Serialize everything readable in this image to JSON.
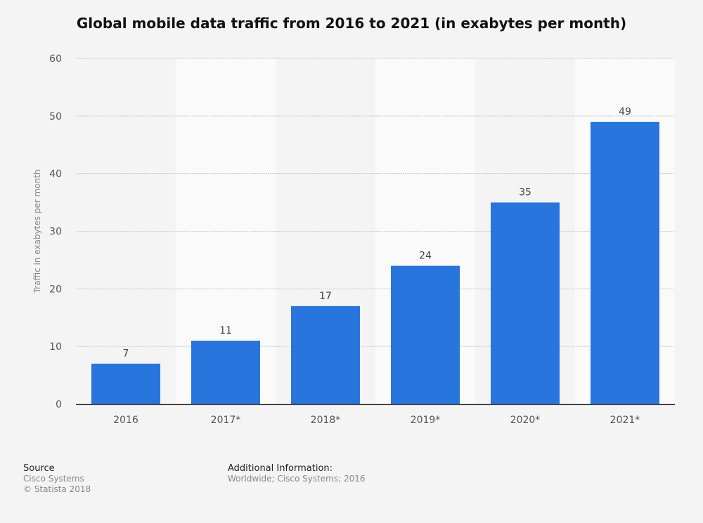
{
  "chart_data": {
    "type": "bar",
    "title": "Global mobile data traffic from 2016 to 2021 (in exabytes per month)",
    "xlabel": "",
    "ylabel": "Traffic in exabytes per month",
    "categories": [
      "2016",
      "2017*",
      "2018*",
      "2019*",
      "2020*",
      "2021*"
    ],
    "values": [
      7,
      11,
      17,
      24,
      35,
      49
    ],
    "ylim": [
      0,
      60
    ],
    "yticks": [
      0,
      10,
      20,
      30,
      40,
      50,
      60
    ],
    "grid": true,
    "bar_color": "#2876dd"
  },
  "footer": {
    "source_label": "Source",
    "source_lines": [
      "Cisco Systems",
      "© Statista 2018"
    ],
    "additional_label": "Additional Information:",
    "additional_text": "Worldwide; Cisco Systems; 2016"
  }
}
